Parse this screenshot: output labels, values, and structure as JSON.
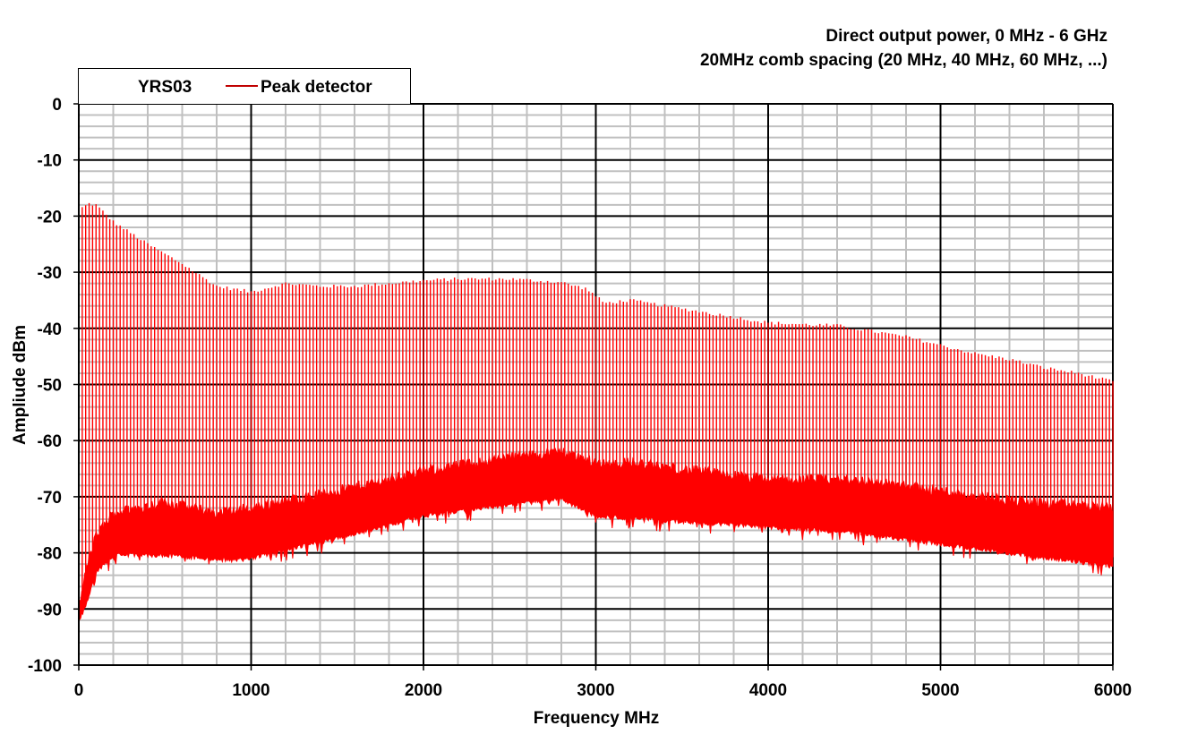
{
  "chart_data": {
    "type": "line",
    "title_lines": [
      "Direct output power, 0 MHz - 6 GHz",
      "20MHz comb spacing (20 MHz, 40 MHz, 60 MHz, ...)"
    ],
    "xlabel": "Frequency  MHz",
    "ylabel": "Ampliude dBm",
    "xlim": [
      0,
      6000
    ],
    "ylim": [
      -100,
      0
    ],
    "x_ticks": [
      0,
      1000,
      2000,
      3000,
      4000,
      5000,
      6000
    ],
    "x_tick_labels": [
      "0",
      "1000",
      "2000",
      "3000",
      "4000",
      "5000",
      "6000"
    ],
    "y_ticks": [
      0,
      -10,
      -20,
      -30,
      -40,
      -50,
      -60,
      -70,
      -80,
      -90,
      -100
    ],
    "y_tick_labels": [
      "0",
      "-10",
      "-20",
      "-30",
      "-40",
      "-50",
      "-60",
      "-70",
      "-80",
      "-90",
      "-100"
    ],
    "x_minor_step": 200,
    "y_minor_step": 2,
    "grid": true,
    "legend": {
      "placement": "top-left",
      "title": "YRS03",
      "entries": [
        {
          "label": "Peak detector",
          "color": "#ff0000"
        }
      ]
    },
    "comb_spacing_mhz": 20,
    "series": [
      {
        "name": "Peak detector",
        "color": "#ff0000",
        "peak_envelope": {
          "x": [
            0,
            20,
            60,
            100,
            200,
            400,
            600,
            800,
            1000,
            1200,
            1400,
            1600,
            1800,
            2000,
            2200,
            2500,
            2800,
            2950,
            3050,
            3200,
            3400,
            3600,
            3800,
            4000,
            4200,
            4400,
            4600,
            4800,
            5000,
            5200,
            5400,
            5600,
            5800,
            6000
          ],
          "y": [
            -24,
            -18.5,
            -17.8,
            -18,
            -21,
            -25,
            -28.5,
            -32.5,
            -33.5,
            -32,
            -32.5,
            -32.5,
            -32,
            -31.5,
            -31.2,
            -31.2,
            -31.8,
            -33,
            -35.5,
            -35,
            -36,
            -37,
            -38,
            -39,
            -39.3,
            -39.5,
            -40.5,
            -41.5,
            -43,
            -44.5,
            -45.5,
            -47,
            -48,
            -49.5
          ]
        },
        "floor_upper": {
          "x": [
            0,
            50,
            100,
            200,
            500,
            800,
            1000,
            1500,
            2000,
            2500,
            2800,
            3000,
            3200,
            4000,
            4500,
            5000,
            5500,
            6000
          ],
          "y": [
            -90,
            -82,
            -77,
            -73,
            -71,
            -73,
            -72,
            -69,
            -65.5,
            -63,
            -62,
            -64,
            -64,
            -67,
            -67,
            -69,
            -71,
            -72
          ]
        },
        "floor_lower": {
          "x": [
            0,
            50,
            100,
            200,
            500,
            900,
            1000,
            1500,
            2000,
            2500,
            2800,
            3000,
            3500,
            4000,
            4500,
            5000,
            5500,
            6000
          ],
          "y": [
            -92,
            -88,
            -83,
            -80,
            -80,
            -81,
            -80.5,
            -77,
            -73,
            -71,
            -70,
            -73,
            -74,
            -75,
            -76,
            -78,
            -80,
            -82
          ]
        }
      }
    ]
  }
}
